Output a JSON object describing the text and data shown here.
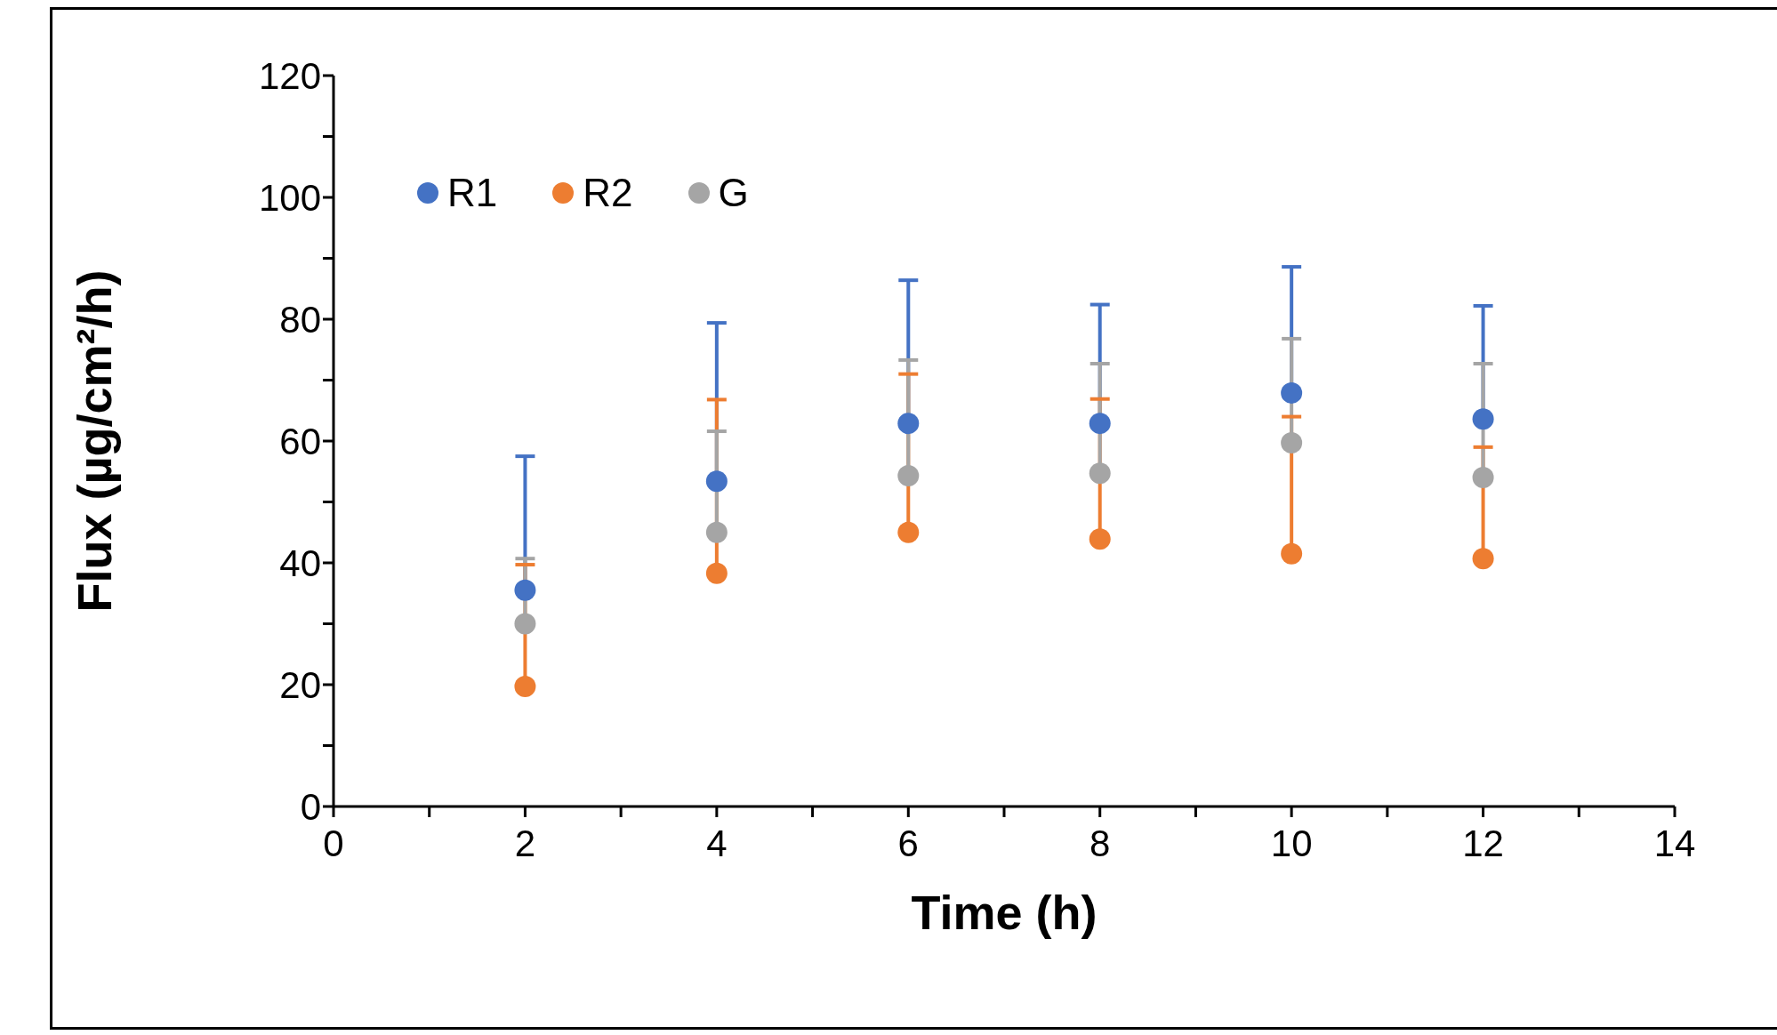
{
  "chart_data": {
    "type": "scatter",
    "xlabel": "Time (h)",
    "ylabel": "Flux (µg/cm²/h)",
    "x": [
      2,
      4,
      6,
      8,
      10,
      12
    ],
    "series": [
      {
        "name": "R1",
        "color": "#4472c4",
        "values": [
          35.5,
          53.4,
          62.9,
          62.9,
          67.9,
          63.6
        ],
        "errors": [
          [
            35.5,
            57.5
          ],
          [
            53.4,
            79.4
          ],
          [
            62.9,
            86.4
          ],
          [
            62.9,
            82.4
          ],
          [
            67.9,
            88.6
          ],
          [
            63.6,
            82.2
          ]
        ]
      },
      {
        "name": "R2",
        "color": "#ed7d31",
        "values": [
          19.7,
          38.3,
          45,
          43.9,
          41.5,
          40.7
        ],
        "errors": [
          [
            19.7,
            39.7
          ],
          [
            38.3,
            66.8
          ],
          [
            45,
            71
          ],
          [
            43.9,
            66.9
          ],
          [
            41.5,
            64
          ],
          [
            40.7,
            59
          ]
        ]
      },
      {
        "name": "G",
        "color": "#a5a5a5",
        "values": [
          30,
          45,
          54.3,
          54.7,
          59.7,
          54
        ],
        "errors": [
          [
            30,
            40.7
          ],
          [
            45,
            61.6
          ],
          [
            54.3,
            73.3
          ],
          [
            54.7,
            72.7
          ],
          [
            59.7,
            76.8
          ],
          [
            54,
            72.7
          ]
        ]
      }
    ],
    "xlim": [
      0,
      14
    ],
    "xticks": [
      0,
      {
        "value": 1,
        "label": null
      },
      2,
      {
        "value": 3,
        "label": null
      },
      4,
      {
        "value": 5,
        "label": null
      },
      6,
      {
        "value": 7,
        "label": null
      },
      8,
      {
        "value": 9,
        "label": null
      },
      10,
      {
        "value": 11,
        "label": null
      },
      12,
      {
        "value": 13,
        "label": null
      },
      14
    ],
    "ylim": [
      0,
      120
    ],
    "yticks": [
      0,
      {
        "value": 10,
        "label": null
      },
      20,
      {
        "value": 30,
        "label": null
      },
      40,
      {
        "value": 50,
        "label": null
      },
      60,
      {
        "value": 70,
        "label": null
      },
      80,
      {
        "value": 90,
        "label": null
      },
      100,
      {
        "value": 110,
        "label": null
      },
      120
    ],
    "legend": "top left",
    "marker": "circle",
    "grid": false
  }
}
